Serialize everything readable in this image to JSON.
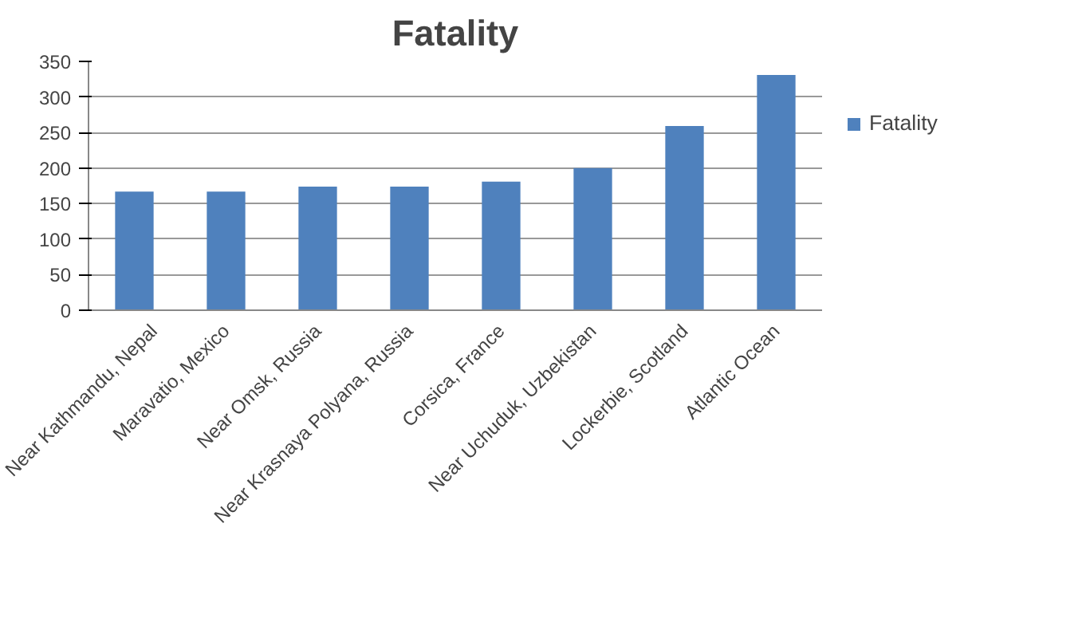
{
  "chart_data": {
    "type": "bar",
    "title": "Fatality",
    "categories": [
      "Near Kathmandu, Nepal",
      "Maravatio, Mexico",
      "Near Omsk, Russia",
      "Near Krasnaya Polyana, Russia",
      "Corsica, France",
      "Near Uchuduk, Uzbekistan",
      "Lockerbie, Scotland",
      "Atlantic Ocean"
    ],
    "series": [
      {
        "name": "Fatality",
        "color": "#4f81bd",
        "values": [
          167,
          167,
          174,
          174,
          181,
          200,
          259,
          331
        ]
      }
    ],
    "ylim": [
      0,
      350
    ],
    "yticks": [
      0,
      50,
      100,
      150,
      200,
      250,
      300,
      350
    ],
    "grid": "y",
    "legend": "right"
  }
}
